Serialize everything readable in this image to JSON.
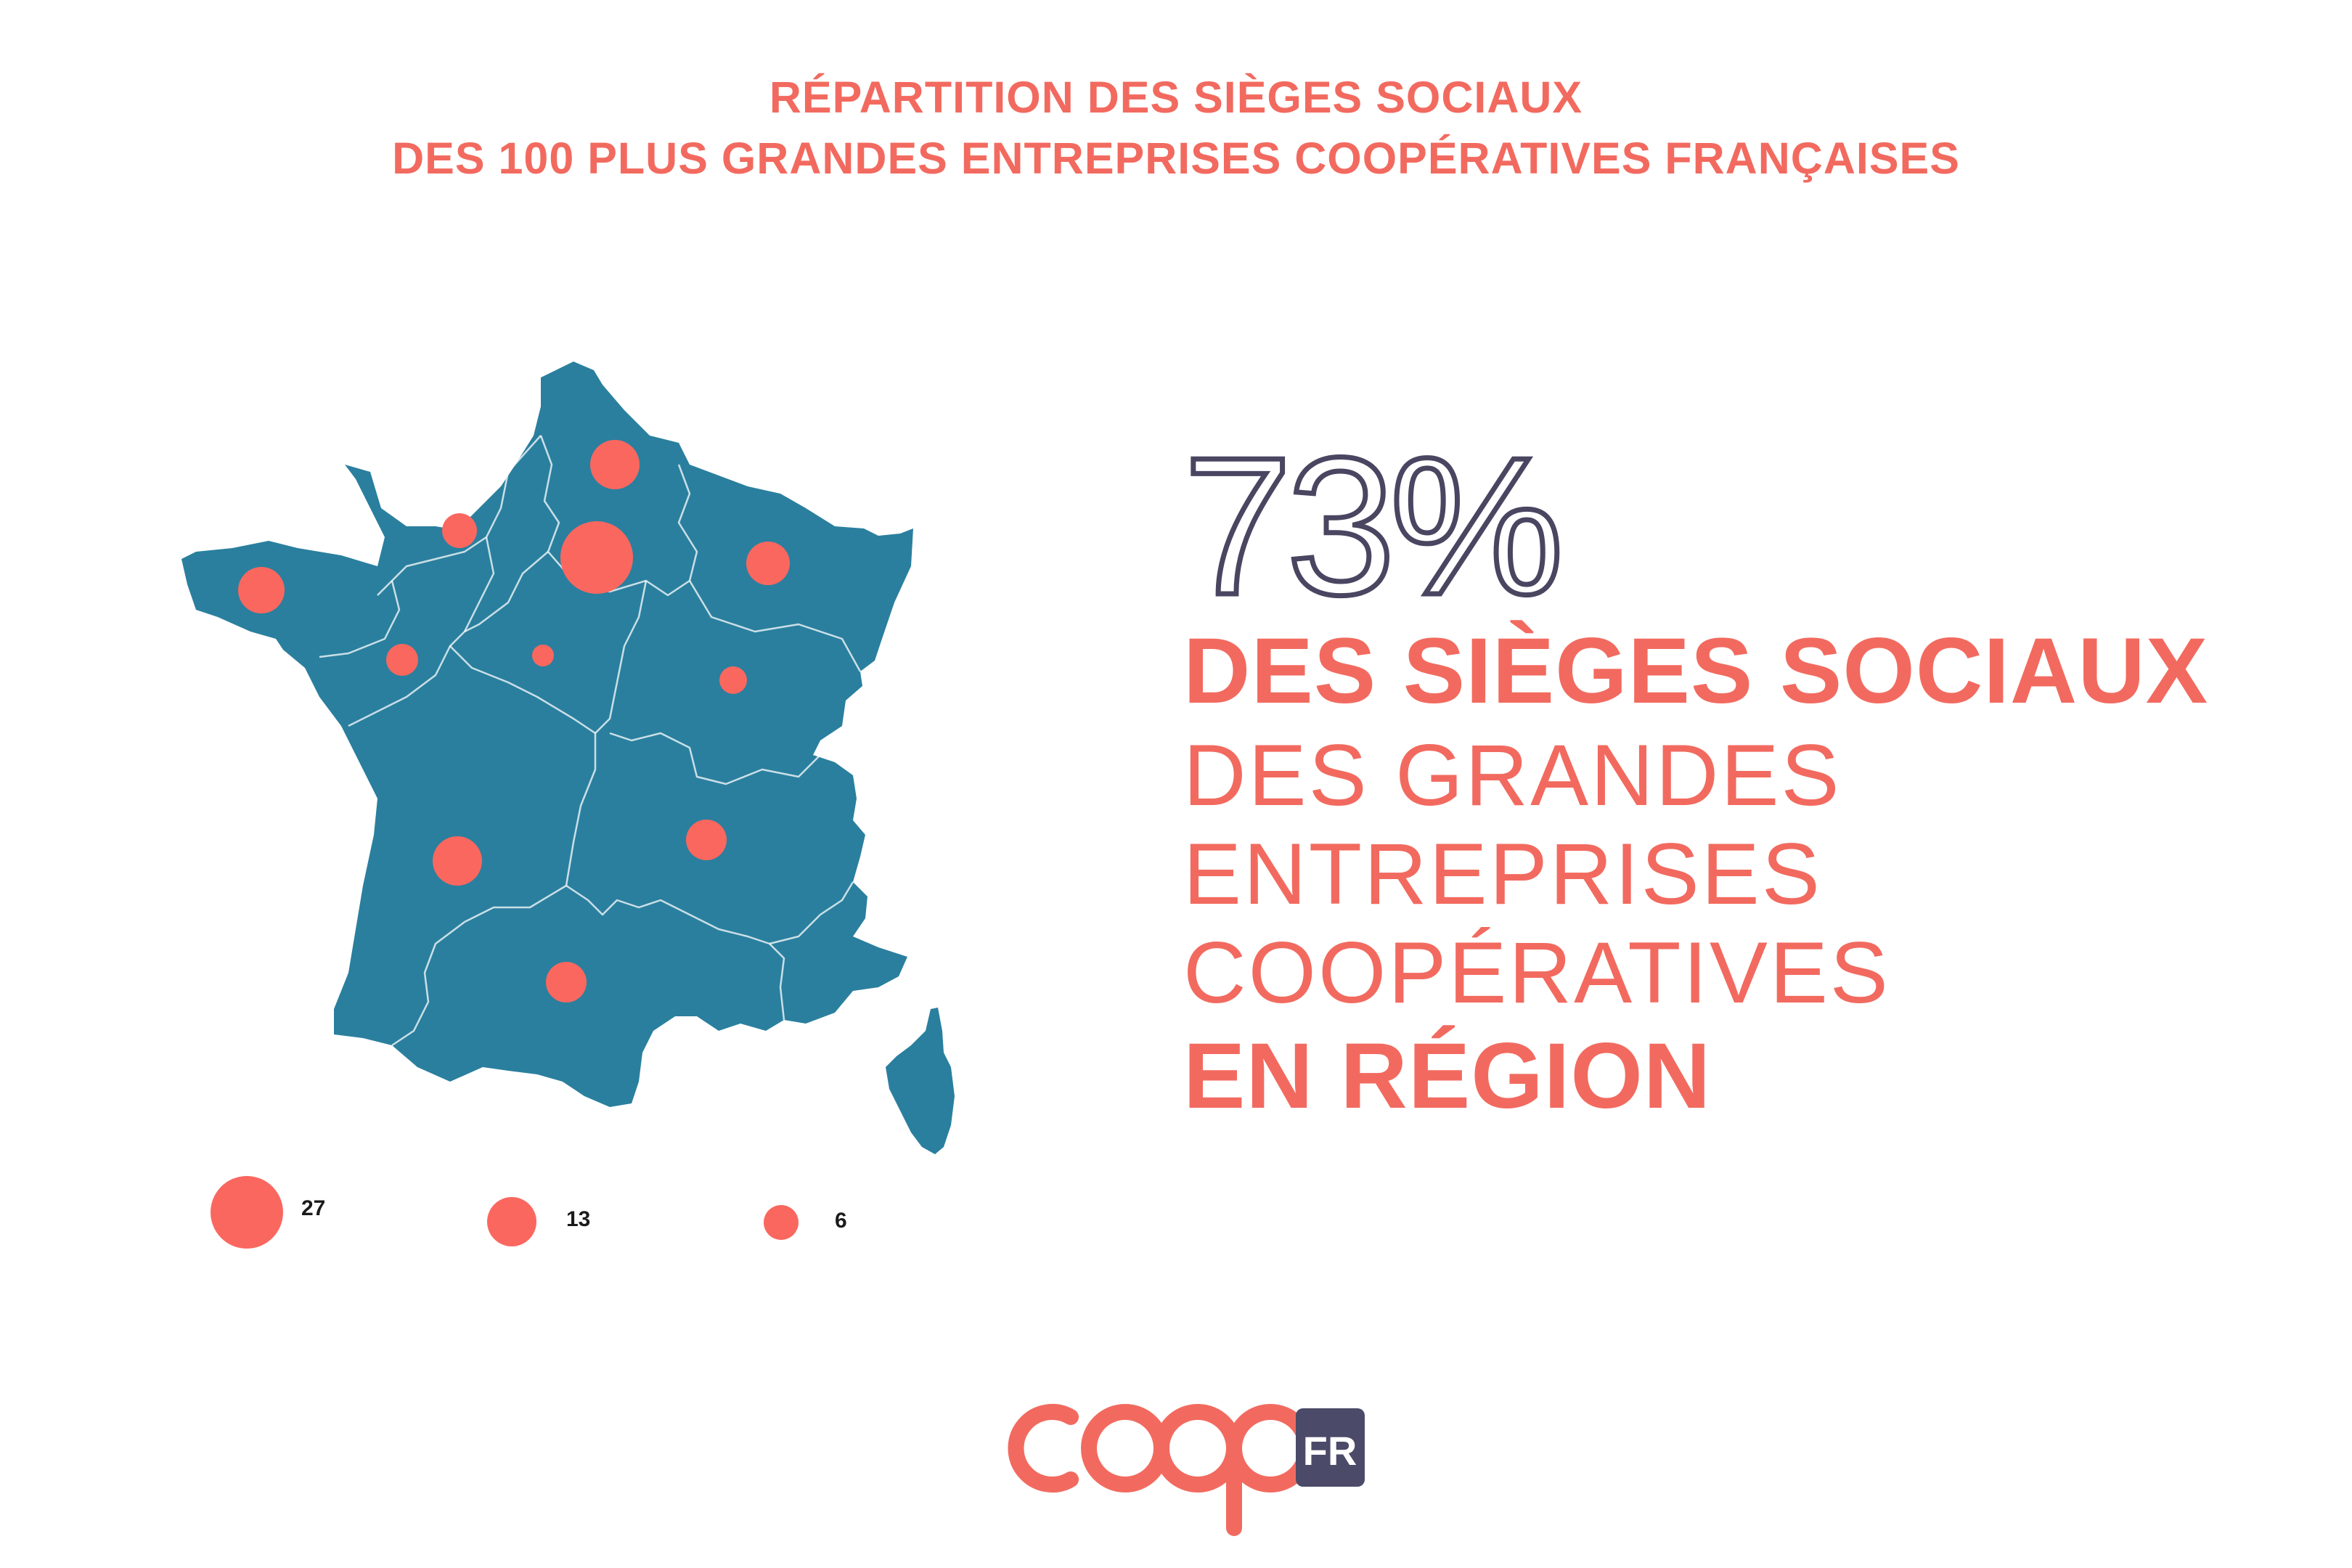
{
  "title": {
    "line1": "RÉPARTITION DES SIÈGES SOCIAUX",
    "line2": "DES 100 PLUS GRANDES ENTREPRISES COOPÉRATIVES FRANÇAISES"
  },
  "headline": {
    "percent": "73%",
    "line1": "DES SIÈGES SOCIAUX",
    "line2": "DES GRANDES",
    "line3": "ENTREPRISES",
    "line4": "COOPÉRATIVES",
    "line5": "EN RÉGION"
  },
  "legend": [
    {
      "value": 27,
      "label": "27"
    },
    {
      "value": 13,
      "label": "13"
    },
    {
      "value": 6,
      "label": "6"
    }
  ],
  "logo": {
    "wordmark": "coop",
    "badge": "FR"
  },
  "colors": {
    "accent": "#f26a5f",
    "map_fill": "#2a7f9e",
    "outline": "#4a4560",
    "logo_badge": "#4b4a68"
  }
}
